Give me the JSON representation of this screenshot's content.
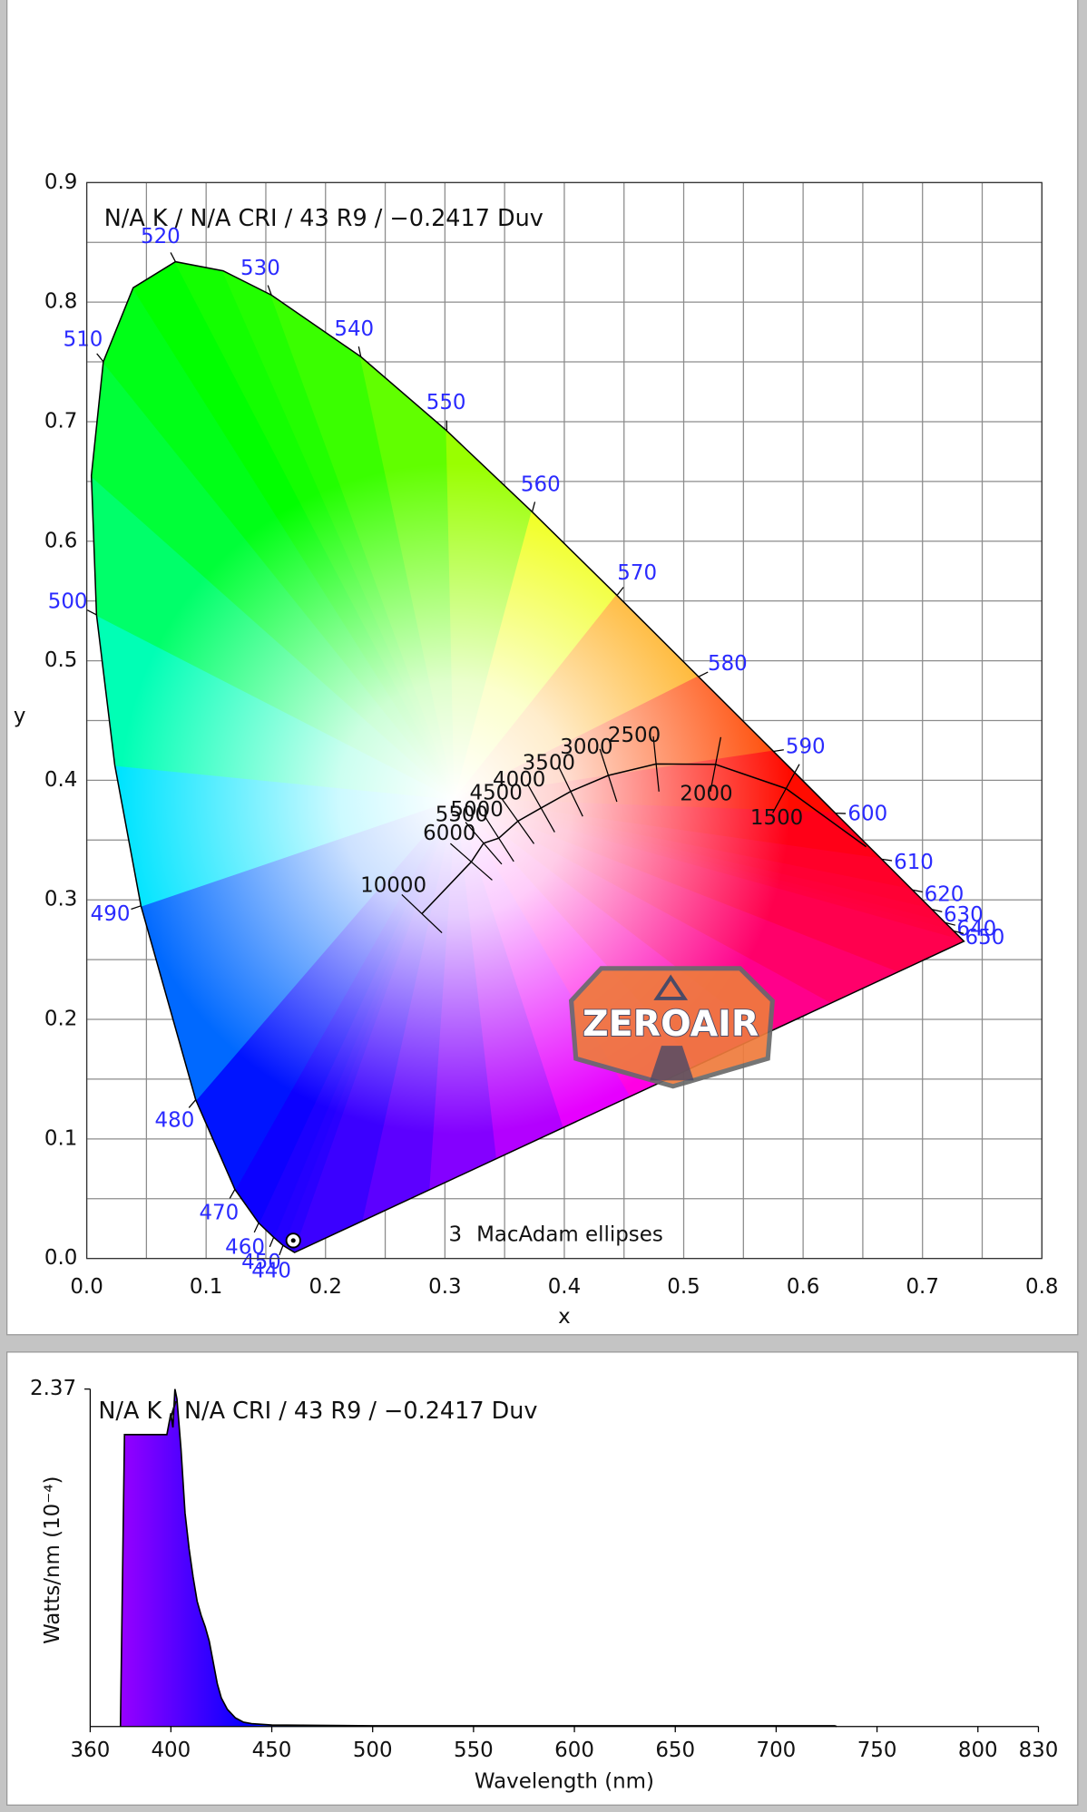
{
  "chart_data": [
    {
      "type": "chromaticity",
      "title": "N/A K / N/A CRI / 43 R9 / −0.2417 Duv",
      "xlabel": "x",
      "ylabel": "y",
      "xlim": [
        0,
        0.8
      ],
      "ylim": [
        0,
        0.9
      ],
      "xticks": [
        {
          "value": 0,
          "label": "0.0"
        },
        {
          "value": 0.1,
          "label": "0.1"
        },
        {
          "value": 0.2,
          "label": "0.2"
        },
        {
          "value": 0.3,
          "label": "0.3"
        },
        {
          "value": 0.4,
          "label": "0.4"
        },
        {
          "value": 0.5,
          "label": "0.5"
        },
        {
          "value": 0.6,
          "label": "0.6"
        },
        {
          "value": 0.7,
          "label": "0.7"
        },
        {
          "value": 0.8,
          "label": "0.8"
        }
      ],
      "yticks": [
        {
          "value": 0,
          "label": "0.0"
        },
        {
          "value": 0.1,
          "label": "0.1"
        },
        {
          "value": 0.2,
          "label": "0.2"
        },
        {
          "value": 0.3,
          "label": "0.3"
        },
        {
          "value": 0.4,
          "label": "0.4"
        },
        {
          "value": 0.5,
          "label": "0.5"
        },
        {
          "value": 0.6,
          "label": "0.6"
        },
        {
          "value": 0.7,
          "label": "0.7"
        },
        {
          "value": 0.8,
          "label": "0.8"
        },
        {
          "value": 0.9,
          "label": "0.9"
        }
      ],
      "xminorticks": [
        0.05,
        0.15,
        0.25,
        0.35,
        0.45,
        0.55,
        0.65,
        0.75
      ],
      "yminorticks": [
        0.05,
        0.15,
        0.25,
        0.35,
        0.45,
        0.55,
        0.65,
        0.75,
        0.85
      ],
      "grid": true,
      "locus": {
        "color": "#2a2aff",
        "wavelengths": [
          null,
          440,
          450,
          460,
          470,
          480,
          490,
          null,
          500,
          null,
          510,
          null,
          520,
          null,
          530,
          540,
          550,
          560,
          570,
          580,
          590,
          600,
          610,
          620,
          630,
          640,
          650,
          null
        ],
        "x": [
          0.1741,
          0.1644,
          0.1566,
          0.144,
          0.1241,
          0.0913,
          0.0454,
          0.0235,
          0.0082,
          0.0039,
          0.0139,
          0.0389,
          0.0743,
          0.1142,
          0.1547,
          0.2296,
          0.3016,
          0.3731,
          0.4441,
          0.5125,
          0.5752,
          0.627,
          0.6658,
          0.6915,
          0.7079,
          0.719,
          0.726,
          0.7347
        ],
        "y": [
          0.005,
          0.0109,
          0.0177,
          0.0297,
          0.0578,
          0.1327,
          0.295,
          0.4127,
          0.5384,
          0.6548,
          0.7502,
          0.812,
          0.8338,
          0.8262,
          0.8059,
          0.7543,
          0.6923,
          0.6245,
          0.5547,
          0.4866,
          0.4242,
          0.3725,
          0.334,
          0.3083,
          0.292,
          0.2809,
          0.274,
          0.2653
        ]
      },
      "planckian": {
        "cct": [
          10000,
          6000,
          5500,
          5000,
          4500,
          4000,
          3500,
          3000,
          2500,
          2000,
          1500,
          null
        ],
        "x": [
          0.2807,
          0.3221,
          0.3324,
          0.3451,
          0.3611,
          0.3805,
          0.4053,
          0.4369,
          0.4769,
          0.5267,
          0.5857,
          0.6528
        ],
        "y": [
          0.2884,
          0.3318,
          0.3474,
          0.3516,
          0.3658,
          0.3768,
          0.3907,
          0.4041,
          0.4137,
          0.4133,
          0.3931,
          0.3444
        ]
      },
      "measurement": {
        "x": 0.173,
        "y": 0.015
      },
      "macadam_steps": 3,
      "macadam_label": "MacAdam ellipses",
      "watermark": "ZEROAIR"
    },
    {
      "type": "spectrum",
      "title": "N/A K / N/A CRI / 43 R9 / −0.2417 Duv",
      "xlabel": "Wavelength (nm)",
      "ylabel": "Watts/nm (10⁻⁴)",
      "xlim": [
        360,
        830
      ],
      "ylim": [
        0,
        2.37
      ],
      "xticks": [
        360,
        400,
        450,
        500,
        550,
        600,
        650,
        700,
        750,
        800,
        830
      ],
      "yticks": [
        2.37
      ],
      "x": [
        375,
        377,
        380,
        385,
        390,
        395,
        398,
        400,
        401,
        402,
        403,
        405,
        407,
        409,
        411,
        413,
        415,
        417,
        419,
        421,
        423,
        425,
        428,
        432,
        436,
        440,
        450,
        500,
        600,
        700,
        729,
        730
      ],
      "values": [
        0,
        2.05,
        2.05,
        2.05,
        2.05,
        2.05,
        2.05,
        2.2,
        2.1,
        2.37,
        2.3,
        1.95,
        1.5,
        1.25,
        1.05,
        0.88,
        0.78,
        0.7,
        0.6,
        0.45,
        0.3,
        0.2,
        0.12,
        0.06,
        0.03,
        0.02,
        0.01,
        0.005,
        0.005,
        0.005,
        0.005,
        0
      ]
    }
  ]
}
